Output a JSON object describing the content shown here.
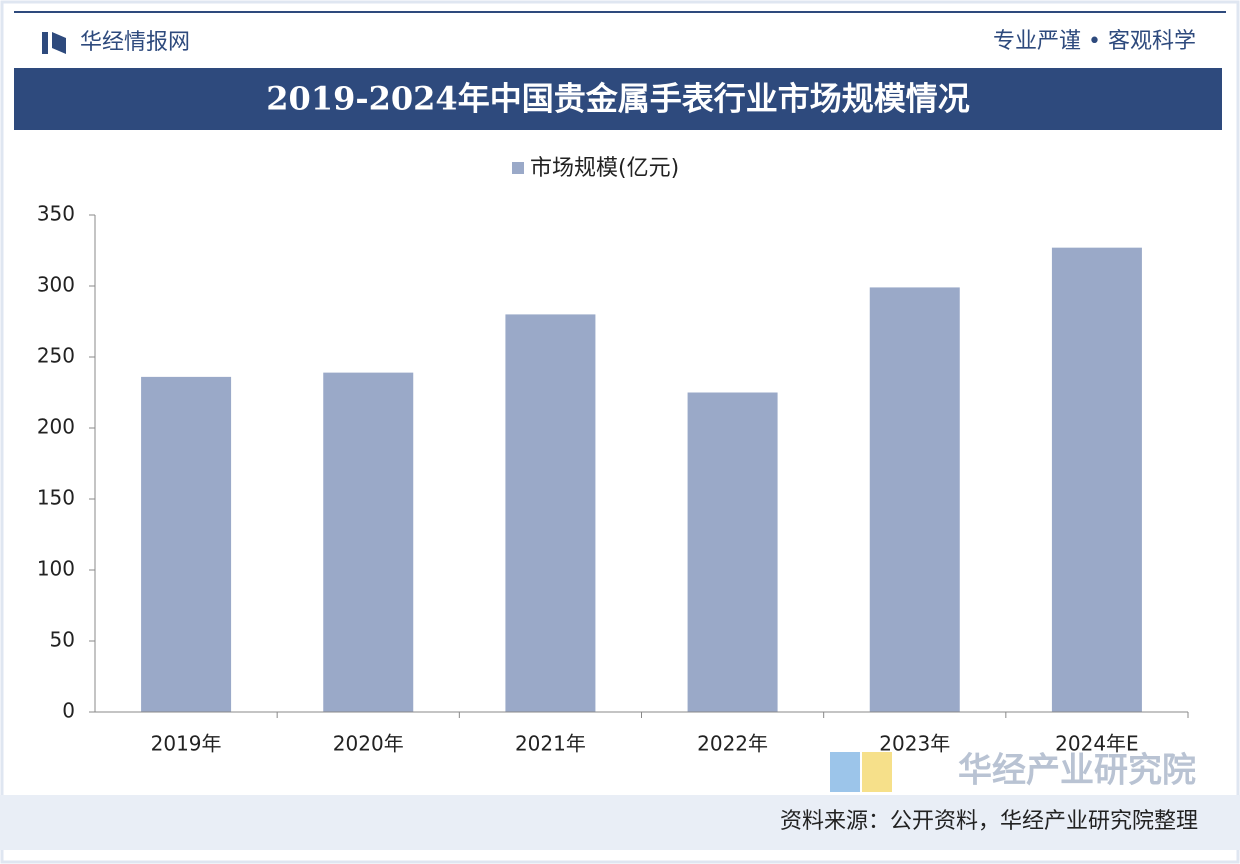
{
  "header": {
    "brand": "华经情报网",
    "slogan": "专业严谨 • 客观科学"
  },
  "chart_data": {
    "type": "bar",
    "title": "2019-2024年中国贵金属手表行业市场规模情况",
    "categories": [
      "2019年",
      "2020年",
      "2021年",
      "2022年",
      "2023年",
      "2024年E"
    ],
    "series": [
      {
        "name": "市场规模(亿元)",
        "color": "#9aa9c8",
        "values": [
          236,
          239,
          280,
          225,
          299,
          327
        ]
      }
    ],
    "ylim": [
      0,
      350
    ],
    "yticks": [
      0,
      50,
      100,
      150,
      200,
      250,
      300,
      350
    ],
    "grid": false,
    "legend": "top",
    "source": "资料来源：公开资料，华经产业研究院整理",
    "watermark": "华经产业研究院"
  }
}
